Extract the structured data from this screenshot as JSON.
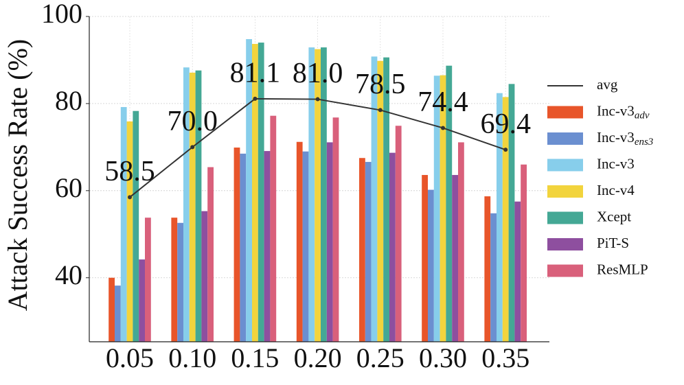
{
  "chart_data": {
    "type": "bar",
    "y_label": "Attack Success Rate (%)",
    "categories": [
      "0.05",
      "0.10",
      "0.15",
      "0.20",
      "0.25",
      "0.30",
      "0.35"
    ],
    "ylim": [
      25.3,
      100
    ],
    "yticks": [
      40,
      60,
      80,
      100
    ],
    "grid": true,
    "legend": "right",
    "line": {
      "type": "line",
      "name": "avg",
      "color": "#333333",
      "values": [
        58.5,
        70.0,
        81.1,
        81.0,
        78.5,
        74.4,
        69.4
      ],
      "value_labels": [
        "58.5",
        "70.0",
        "81.1",
        "81.0",
        "78.5",
        "74.4",
        "69.4"
      ]
    },
    "series": [
      {
        "name": "Inc-v3",
        "subscript": "adv",
        "color": "#e8552a",
        "values": [
          40.0,
          53.8,
          69.9,
          71.2,
          67.5,
          63.6,
          58.7
        ]
      },
      {
        "name": "Inc-v3",
        "subscript": "ens3",
        "color": "#6b8fd0",
        "values": [
          38.2,
          52.6,
          68.5,
          69.0,
          66.6,
          60.2,
          54.8
        ]
      },
      {
        "name": "Inc-v3",
        "color": "#87ceeb",
        "values": [
          79.2,
          88.3,
          94.8,
          92.9,
          90.8,
          86.4,
          82.4
        ]
      },
      {
        "name": "Inc-v4",
        "color": "#f2d43d",
        "values": [
          75.9,
          87.1,
          93.7,
          92.5,
          89.8,
          86.5,
          81.5
        ]
      },
      {
        "name": "Xcept",
        "color": "#44a895",
        "values": [
          78.3,
          87.6,
          94.0,
          92.9,
          90.6,
          88.7,
          84.5
        ]
      },
      {
        "name": "PiT-S",
        "color": "#8e4f9f",
        "values": [
          44.2,
          55.3,
          69.1,
          71.1,
          68.7,
          63.6,
          57.5
        ]
      },
      {
        "name": "ResMLP",
        "color": "#d9607b",
        "values": [
          53.8,
          65.4,
          77.2,
          76.8,
          74.9,
          71.1,
          66.0
        ]
      }
    ]
  }
}
